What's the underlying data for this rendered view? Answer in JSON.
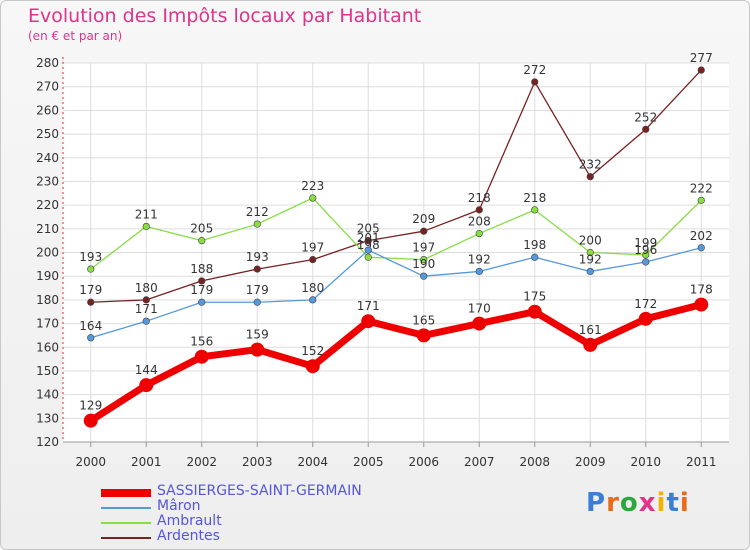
{
  "title": "Evolution des Impôts locaux par Habitant",
  "subtitle": "(en € et par an)",
  "logo": {
    "text": "Proxiti",
    "letter_colors": [
      "#3a7fd5",
      "#e86a1c",
      "#2aa83c",
      "#e0338a",
      "#f0b400",
      "#3a7fd5",
      "#e86a1c"
    ]
  },
  "chart_data": {
    "type": "line",
    "x": [
      "2000",
      "2001",
      "2002",
      "2003",
      "2004",
      "2005",
      "2006",
      "2007",
      "2008",
      "2009",
      "2010",
      "2011"
    ],
    "ylim": [
      120,
      280
    ],
    "yticks": [
      120,
      130,
      140,
      150,
      160,
      170,
      180,
      190,
      200,
      210,
      220,
      230,
      240,
      250,
      260,
      270,
      280
    ],
    "grid": true,
    "legend_position": "bottom-left",
    "series": [
      {
        "name": "SASSIERGES-SAINT-GERMAIN",
        "color": "#ee0000",
        "values": [
          129,
          144,
          156,
          159,
          152,
          171,
          165,
          170,
          175,
          161,
          172,
          178
        ]
      },
      {
        "name": "Mâron",
        "color": "#5599dd",
        "values": [
          164,
          171,
          179,
          179,
          180,
          201,
          190,
          192,
          198,
          192,
          196,
          202
        ]
      },
      {
        "name": "Ambrault",
        "color": "#88dd44",
        "values": [
          193,
          211,
          205,
          212,
          223,
          198,
          197,
          208,
          218,
          200,
          199,
          222
        ]
      },
      {
        "name": "Ardentes",
        "color": "#772222",
        "values": [
          179,
          180,
          188,
          193,
          197,
          205,
          209,
          218,
          272,
          232,
          252,
          277
        ]
      }
    ]
  }
}
